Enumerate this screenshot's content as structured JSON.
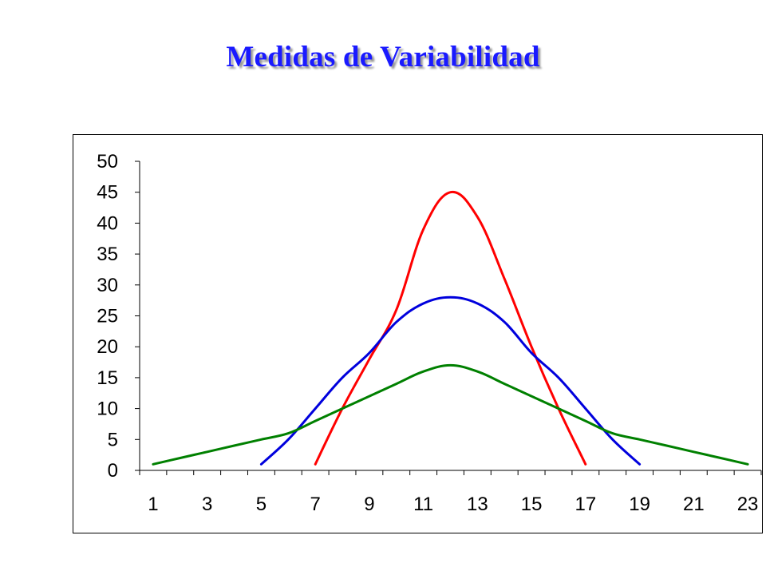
{
  "title": "Medidas de Variabilidad",
  "chart_data": {
    "type": "line",
    "title": "Medidas de Variabilidad",
    "xlabel": "",
    "ylabel": "",
    "x": [
      1,
      2,
      3,
      4,
      5,
      6,
      7,
      8,
      9,
      10,
      11,
      12,
      13,
      14,
      15,
      16,
      17,
      18,
      19,
      20,
      21,
      22,
      23
    ],
    "x_tick_labels": [
      "1",
      "3",
      "5",
      "7",
      "9",
      "11",
      "13",
      "15",
      "17",
      "19",
      "21",
      "23"
    ],
    "y_ticks": [
      0,
      5,
      10,
      15,
      20,
      25,
      30,
      35,
      40,
      45,
      50
    ],
    "ylim": [
      0,
      50
    ],
    "grid": false,
    "legend": "none",
    "series": [
      {
        "color": "#ff0000",
        "x": [
          7,
          8,
          9,
          10,
          11,
          12,
          13,
          14,
          15,
          16,
          17
        ],
        "values": [
          1,
          10,
          18,
          26,
          39,
          45,
          41,
          31,
          20,
          10,
          1
        ]
      },
      {
        "color": "#0000dd",
        "x": [
          5,
          6,
          7,
          8,
          9,
          10,
          11,
          12,
          13,
          14,
          15,
          16,
          17,
          18,
          19
        ],
        "values": [
          1,
          5,
          10,
          15,
          19,
          24,
          27,
          28,
          27,
          24,
          19,
          15,
          10,
          5,
          1
        ]
      },
      {
        "color": "#008000",
        "x": [
          1,
          2,
          3,
          4,
          5,
          6,
          7,
          8,
          9,
          10,
          11,
          12,
          13,
          14,
          15,
          16,
          17,
          18,
          19,
          20,
          21,
          22,
          23
        ],
        "values": [
          1,
          2,
          3,
          4,
          5,
          6,
          8,
          10,
          12,
          14,
          16,
          17,
          16,
          14,
          12,
          10,
          8,
          6,
          5,
          4,
          3,
          2,
          1
        ]
      }
    ]
  }
}
